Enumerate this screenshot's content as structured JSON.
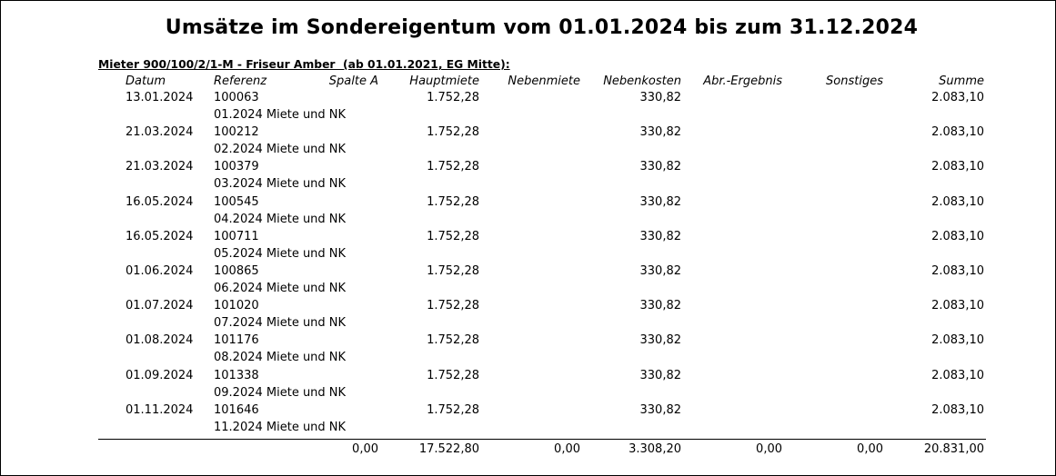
{
  "title": "Umsätze im Sondereigentum vom 01.01.2024 bis zum 31.12.2024",
  "tenant_line": "Mieter 900/100/2/1-M - Friseur Amber  (ab 01.01.2021, EG Mitte):",
  "columns": {
    "datum": "Datum",
    "referenz": "Referenz",
    "spalte_a": "Spalte A",
    "hauptmiete": "Hauptmiete",
    "nebenmiete": "Nebenmiete",
    "nebenkosten": "Nebenkosten",
    "abr": "Abr.-Ergebnis",
    "sonstiges": "Sonstiges",
    "summe": "Summe"
  },
  "rows": [
    {
      "datum": "13.01.2024",
      "ref": "100063",
      "text": "01.2024 Miete und NK",
      "hauptmiete": "1.752,28",
      "nebenkosten": "330,82",
      "summe": "2.083,10"
    },
    {
      "datum": "21.03.2024",
      "ref": "100212",
      "text": "02.2024 Miete und NK",
      "hauptmiete": "1.752,28",
      "nebenkosten": "330,82",
      "summe": "2.083,10"
    },
    {
      "datum": "21.03.2024",
      "ref": "100379",
      "text": "03.2024 Miete und NK",
      "hauptmiete": "1.752,28",
      "nebenkosten": "330,82",
      "summe": "2.083,10"
    },
    {
      "datum": "16.05.2024",
      "ref": "100545",
      "text": "04.2024 Miete und NK",
      "hauptmiete": "1.752,28",
      "nebenkosten": "330,82",
      "summe": "2.083,10"
    },
    {
      "datum": "16.05.2024",
      "ref": "100711",
      "text": "05.2024 Miete und NK",
      "hauptmiete": "1.752,28",
      "nebenkosten": "330,82",
      "summe": "2.083,10"
    },
    {
      "datum": "01.06.2024",
      "ref": "100865",
      "text": "06.2024 Miete und NK",
      "hauptmiete": "1.752,28",
      "nebenkosten": "330,82",
      "summe": "2.083,10"
    },
    {
      "datum": "01.07.2024",
      "ref": "101020",
      "text": "07.2024 Miete und NK",
      "hauptmiete": "1.752,28",
      "nebenkosten": "330,82",
      "summe": "2.083,10"
    },
    {
      "datum": "01.08.2024",
      "ref": "101176",
      "text": "08.2024 Miete und NK",
      "hauptmiete": "1.752,28",
      "nebenkosten": "330,82",
      "summe": "2.083,10"
    },
    {
      "datum": "01.09.2024",
      "ref": "101338",
      "text": "09.2024 Miete und NK",
      "hauptmiete": "1.752,28",
      "nebenkosten": "330,82",
      "summe": "2.083,10"
    },
    {
      "datum": "01.11.2024",
      "ref": "101646",
      "text": "11.2024 Miete und NK",
      "hauptmiete": "1.752,28",
      "nebenkosten": "330,82",
      "summe": "2.083,10"
    }
  ],
  "totals": {
    "spalte_a": "0,00",
    "hauptmiete": "17.522,80",
    "nebenmiete": "0,00",
    "nebenkosten": "3.308,20",
    "abr": "0,00",
    "sonstiges": "0,00",
    "summe": "20.831,00"
  }
}
